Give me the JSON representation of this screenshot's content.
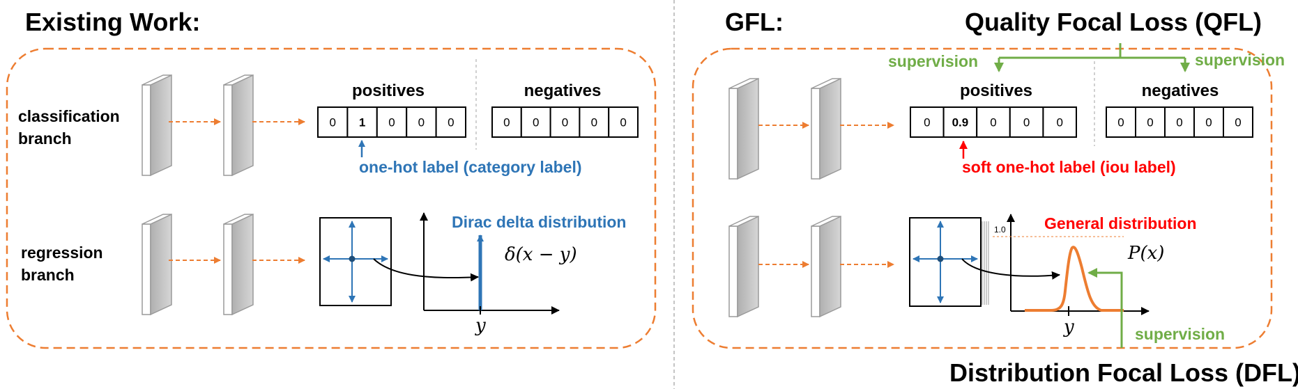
{
  "colors": {
    "orange": "#ed7d31",
    "blue": "#2e75b6",
    "red": "#ff0000",
    "green": "#70ad47",
    "gray_panel": "#c8c8c8"
  },
  "left": {
    "title": "Existing Work:",
    "classification_label_1": "classification",
    "classification_label_2": "branch",
    "regression_label_1": "regression",
    "regression_label_2": "branch",
    "positives_header": "positives",
    "negatives_header": "negatives",
    "positives_cells": [
      "0",
      "1",
      "0",
      "0",
      "0"
    ],
    "negatives_cells": [
      "0",
      "0",
      "0",
      "0",
      "0"
    ],
    "label_annotation": "one-hot label (category label)",
    "dist_title": "Dirac delta distribution",
    "dist_formula": "δ(x − y)",
    "axis_y_label": "y"
  },
  "right": {
    "title": "GFL:",
    "qfl_title": "Quality Focal Loss (QFL)",
    "dfl_title": "Distribution Focal Loss (DFL)",
    "supervision_left": "supervision",
    "supervision_right": "supervision",
    "supervision_bottom": "supervision",
    "positives_header": "positives",
    "negatives_header": "negatives",
    "positives_cells": [
      "0",
      "0.9",
      "0",
      "0",
      "0"
    ],
    "negatives_cells": [
      "0",
      "0",
      "0",
      "0",
      "0"
    ],
    "label_annotation": "soft one-hot label (iou label)",
    "dist_title": "General distribution",
    "dist_formula": "P(x)",
    "axis_y_label": "y",
    "tick_label": "1.0"
  }
}
